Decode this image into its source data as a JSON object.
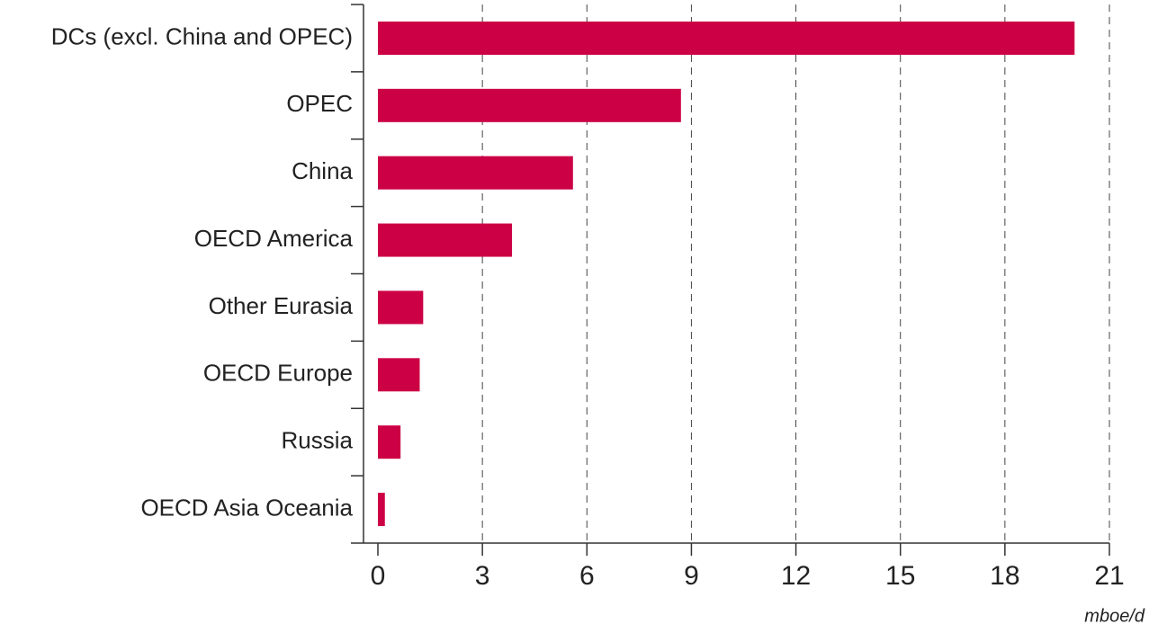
{
  "chart_data": {
    "type": "bar",
    "orientation": "horizontal",
    "categories": [
      "DCs (excl. China and OPEC)",
      "OPEC",
      "China",
      "OECD America",
      "Other Eurasia",
      "OECD Europe",
      "Russia",
      "OECD Asia Oceania"
    ],
    "values": [
      20.0,
      8.7,
      5.6,
      3.85,
      1.3,
      1.2,
      0.65,
      0.2
    ],
    "color": "#cc0044",
    "xlim": [
      0,
      21
    ],
    "xticks": [
      0,
      3,
      6,
      9,
      12,
      15,
      18,
      21
    ],
    "x_label": "mboe/d",
    "grid": true
  }
}
